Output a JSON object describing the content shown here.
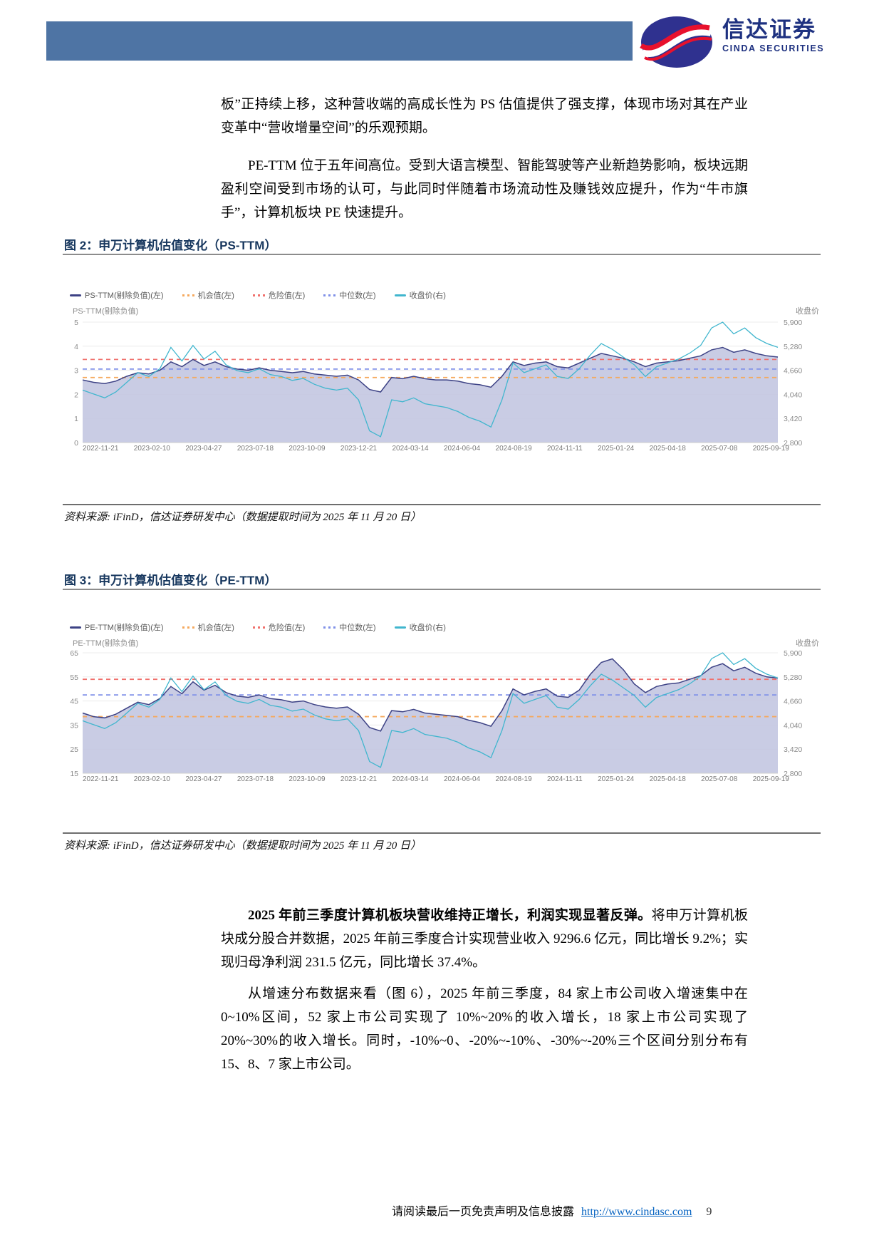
{
  "header": {
    "brand_cn": "信达证券",
    "brand_en": "CINDA SECURITIES"
  },
  "paragraphs": {
    "p1": "板”正持续上移，这种营收端的高成长性为 PS 估值提供了强支撑，体现市场对其在产业变革中“营收增量空间”的乐观预期。",
    "p2": "PE-TTM 位于五年间高位。受到大语言模型、智能驾驶等产业新趋势影响，板块远期盈利空间受到市场的认可，与此同时伴随着市场流动性及赚钱效应提升，作为“牛市旗手”，计算机板块 PE 快速提升。",
    "p3_lead": "2025 年前三季度计算机板块营收维持正增长，利润实现显著反弹。",
    "p3_rest": "将申万计算机板块成分股合并数据，2025 年前三季度合计实现营业收入 9296.6 亿元，同比增长 9.2%；实现归母净利润 231.5 亿元，同比增长 37.4%。",
    "p4": "从增速分布数据来看（图 6），2025 年前三季度，84 家上市公司收入增速集中在 0~10%区间，52 家上市公司实现了 10%~20%的收入增长，18 家上市公司实现了 20%~30%的收入增长。同时，-10%~0、-20%~-10%、-30%~-20%三个区间分别分布有 15、8、7 家上市公司。"
  },
  "figure2": {
    "title": "图 2：申万计算机估值变化（PS-TTM）",
    "source": "资料来源: iFinD，信达证券研发中心（数据提取时间为 2025 年 11 月 20 日）"
  },
  "figure3": {
    "title": "图 3：申万计算机估值变化（PE-TTM）",
    "source": "资料来源: iFinD，信达证券研发中心（数据提取时间为 2025 年 11 月 20 日）"
  },
  "chart_data": [
    {
      "type": "line",
      "title": "申万计算机估值变化（PS-TTM）",
      "legend": [
        "PS-TTM(剔除负值)(左)",
        "机会值(左)",
        "危险值(左)",
        "中位数(左)",
        "收盘价(右)"
      ],
      "left_axis_label": "PS-TTM(剔除负值)",
      "right_axis_label": "收盘价",
      "ylim": [
        0,
        5
      ],
      "yticks": [
        "5",
        "4",
        "3",
        "2",
        "1",
        "0"
      ],
      "right_ylim": [
        2800,
        5900
      ],
      "right_yticks": [
        "5,900",
        "5,280",
        "4,660",
        "4,040",
        "3,420",
        "2,800"
      ],
      "grid": true,
      "legend_position": "top",
      "x_tick_labels": [
        "2022-11-21",
        "2023-02-10",
        "2023-04-27",
        "2023-07-18",
        "2023-10-09",
        "2023-12-21",
        "2024-03-14",
        "2024-06-04",
        "2024-08-19",
        "2024-11-11",
        "2025-01-24",
        "2025-04-18",
        "2025-07-08",
        "2025-09-19"
      ],
      "thresholds": [
        {
          "name": "机会值",
          "value": 2.7
        },
        {
          "name": "危险值",
          "value": 3.45
        },
        {
          "name": "中位数",
          "value": 3.05
        }
      ],
      "series": [
        {
          "name": "PS-TTM(剔除负值)",
          "axis": "left",
          "values": [
            2.6,
            2.5,
            2.45,
            2.55,
            2.75,
            2.9,
            2.85,
            3.0,
            3.35,
            3.15,
            3.45,
            3.2,
            3.35,
            3.15,
            3.05,
            3.0,
            3.1,
            3.0,
            2.95,
            2.9,
            2.95,
            2.85,
            2.8,
            2.75,
            2.8,
            2.6,
            2.2,
            2.1,
            2.7,
            2.65,
            2.75,
            2.65,
            2.6,
            2.6,
            2.55,
            2.45,
            2.4,
            2.3,
            2.75,
            3.35,
            3.2,
            3.3,
            3.35,
            3.15,
            3.1,
            3.3,
            3.5,
            3.7,
            3.6,
            3.5,
            3.35,
            3.15,
            3.3,
            3.35,
            3.4,
            3.5,
            3.6,
            3.85,
            3.95,
            3.75,
            3.85,
            3.7,
            3.6,
            3.55
          ]
        },
        {
          "name": "收盘价",
          "axis": "right",
          "values": [
            4150,
            4050,
            3950,
            4100,
            4350,
            4600,
            4500,
            4700,
            5250,
            4900,
            5300,
            4950,
            5150,
            4800,
            4650,
            4600,
            4700,
            4550,
            4500,
            4400,
            4450,
            4300,
            4200,
            4150,
            4200,
            3900,
            3100,
            2950,
            3900,
            3850,
            3950,
            3800,
            3750,
            3700,
            3600,
            3450,
            3350,
            3200,
            3900,
            4850,
            4600,
            4700,
            4800,
            4500,
            4450,
            4700,
            5050,
            5350,
            5200,
            5000,
            4800,
            4500,
            4750,
            4850,
            4950,
            5100,
            5300,
            5750,
            5900,
            5600,
            5750,
            5500,
            5350,
            5250
          ]
        }
      ]
    },
    {
      "type": "line",
      "title": "申万计算机估值变化（PE-TTM）",
      "legend": [
        "PE-TTM(剔除负值)(左)",
        "机会值(左)",
        "危险值(左)",
        "中位数(左)",
        "收盘价(右)"
      ],
      "left_axis_label": "PE-TTM(剔除负值)",
      "right_axis_label": "收盘价",
      "ylim": [
        15,
        65
      ],
      "yticks": [
        "65",
        "55",
        "45",
        "35",
        "25",
        "15"
      ],
      "right_ylim": [
        2800,
        5900
      ],
      "right_yticks": [
        "5,900",
        "5,280",
        "4,660",
        "4,040",
        "3,420",
        "2,800"
      ],
      "grid": true,
      "legend_position": "top",
      "x_tick_labels": [
        "2022-11-21",
        "2023-02-10",
        "2023-04-27",
        "2023-07-18",
        "2023-10-09",
        "2023-12-21",
        "2024-03-14",
        "2024-06-04",
        "2024-08-19",
        "2024-11-11",
        "2025-01-24",
        "2025-04-18",
        "2025-07-08",
        "2025-09-19"
      ],
      "thresholds": [
        {
          "name": "机会值",
          "value": 38.5
        },
        {
          "name": "危险值",
          "value": 54
        },
        {
          "name": "中位数",
          "value": 47.5
        }
      ],
      "series": [
        {
          "name": "PE-TTM(剔除负值)",
          "axis": "left",
          "values": [
            40,
            38.5,
            38,
            39.5,
            42,
            44.5,
            43.5,
            46,
            51,
            48,
            53,
            49.5,
            51.5,
            48.5,
            47,
            46.5,
            47.5,
            46,
            45.5,
            44.5,
            45,
            43.5,
            42.5,
            42,
            42.5,
            39.5,
            34,
            32.5,
            41,
            40.5,
            41.5,
            40,
            39.5,
            39,
            38.5,
            37,
            36,
            34.5,
            41,
            50,
            47.5,
            49,
            50,
            47,
            46.5,
            49.5,
            56,
            61,
            62.5,
            58,
            52,
            48.5,
            51,
            52,
            52.5,
            54,
            55.5,
            59,
            60.5,
            57.5,
            59,
            56.5,
            55,
            54.5
          ]
        },
        {
          "name": "收盘价",
          "axis": "right",
          "values": [
            4150,
            4050,
            3950,
            4100,
            4350,
            4600,
            4500,
            4700,
            5250,
            4900,
            5300,
            4950,
            5150,
            4800,
            4650,
            4600,
            4700,
            4550,
            4500,
            4400,
            4450,
            4300,
            4200,
            4150,
            4200,
            3900,
            3100,
            2950,
            3900,
            3850,
            3950,
            3800,
            3750,
            3700,
            3600,
            3450,
            3350,
            3200,
            3900,
            4850,
            4600,
            4700,
            4800,
            4500,
            4450,
            4700,
            5050,
            5350,
            5200,
            5000,
            4800,
            4500,
            4750,
            4850,
            4950,
            5100,
            5300,
            5750,
            5900,
            5600,
            5750,
            5500,
            5350,
            5250
          ]
        }
      ]
    }
  ],
  "colors": {
    "header_bar": "#4e74a4",
    "logo_blue": "#1e3180",
    "logo_red": "#e8112d",
    "title_navy": "#17375e",
    "main_line": "#3d4285",
    "area_fill": "#c3c6e1",
    "price_line": "#41b6ce",
    "opportunity": "#f5a95e",
    "danger": "#f0706c",
    "median": "#8091e8",
    "axis_text": "#8b8b8b",
    "grid": "#ececec",
    "link_blue": "#0563c1"
  },
  "footer": {
    "disclaimer": "请阅读最后一页免责声明及信息披露",
    "url": "http://www.cindasc.com",
    "page_number": "9"
  }
}
